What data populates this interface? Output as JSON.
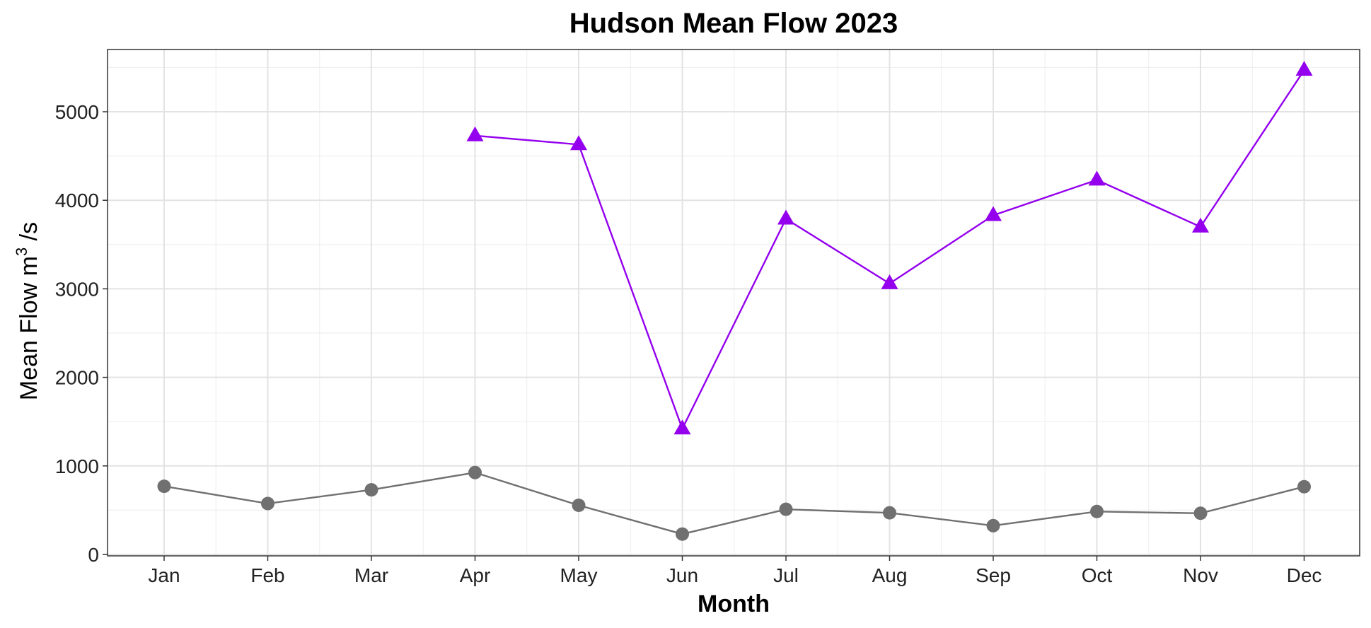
{
  "chart_data": {
    "type": "line",
    "title": "Hudson Mean Flow 2023",
    "xlabel": "Month",
    "ylabel": {
      "before": "Mean Flow m",
      "sup": "3",
      "after": " /s"
    },
    "categories": [
      "Jan",
      "Feb",
      "Mar",
      "Apr",
      "May",
      "Jun",
      "Jul",
      "Aug",
      "Sep",
      "Oct",
      "Nov",
      "Dec"
    ],
    "ylim": [
      0,
      5700
    ],
    "yticks": [
      0,
      1000,
      2000,
      3000,
      4000,
      5000
    ],
    "grid": true,
    "series": [
      {
        "marker": "triangle",
        "color": "#9400ee",
        "values": [
          null,
          null,
          null,
          4730,
          4630,
          1420,
          3790,
          3060,
          3830,
          4230,
          3700,
          5470
        ]
      },
      {
        "marker": "circle",
        "color": "#707070",
        "values": [
          770,
          575,
          730,
          925,
          555,
          230,
          510,
          470,
          325,
          485,
          465,
          765
        ]
      }
    ]
  }
}
